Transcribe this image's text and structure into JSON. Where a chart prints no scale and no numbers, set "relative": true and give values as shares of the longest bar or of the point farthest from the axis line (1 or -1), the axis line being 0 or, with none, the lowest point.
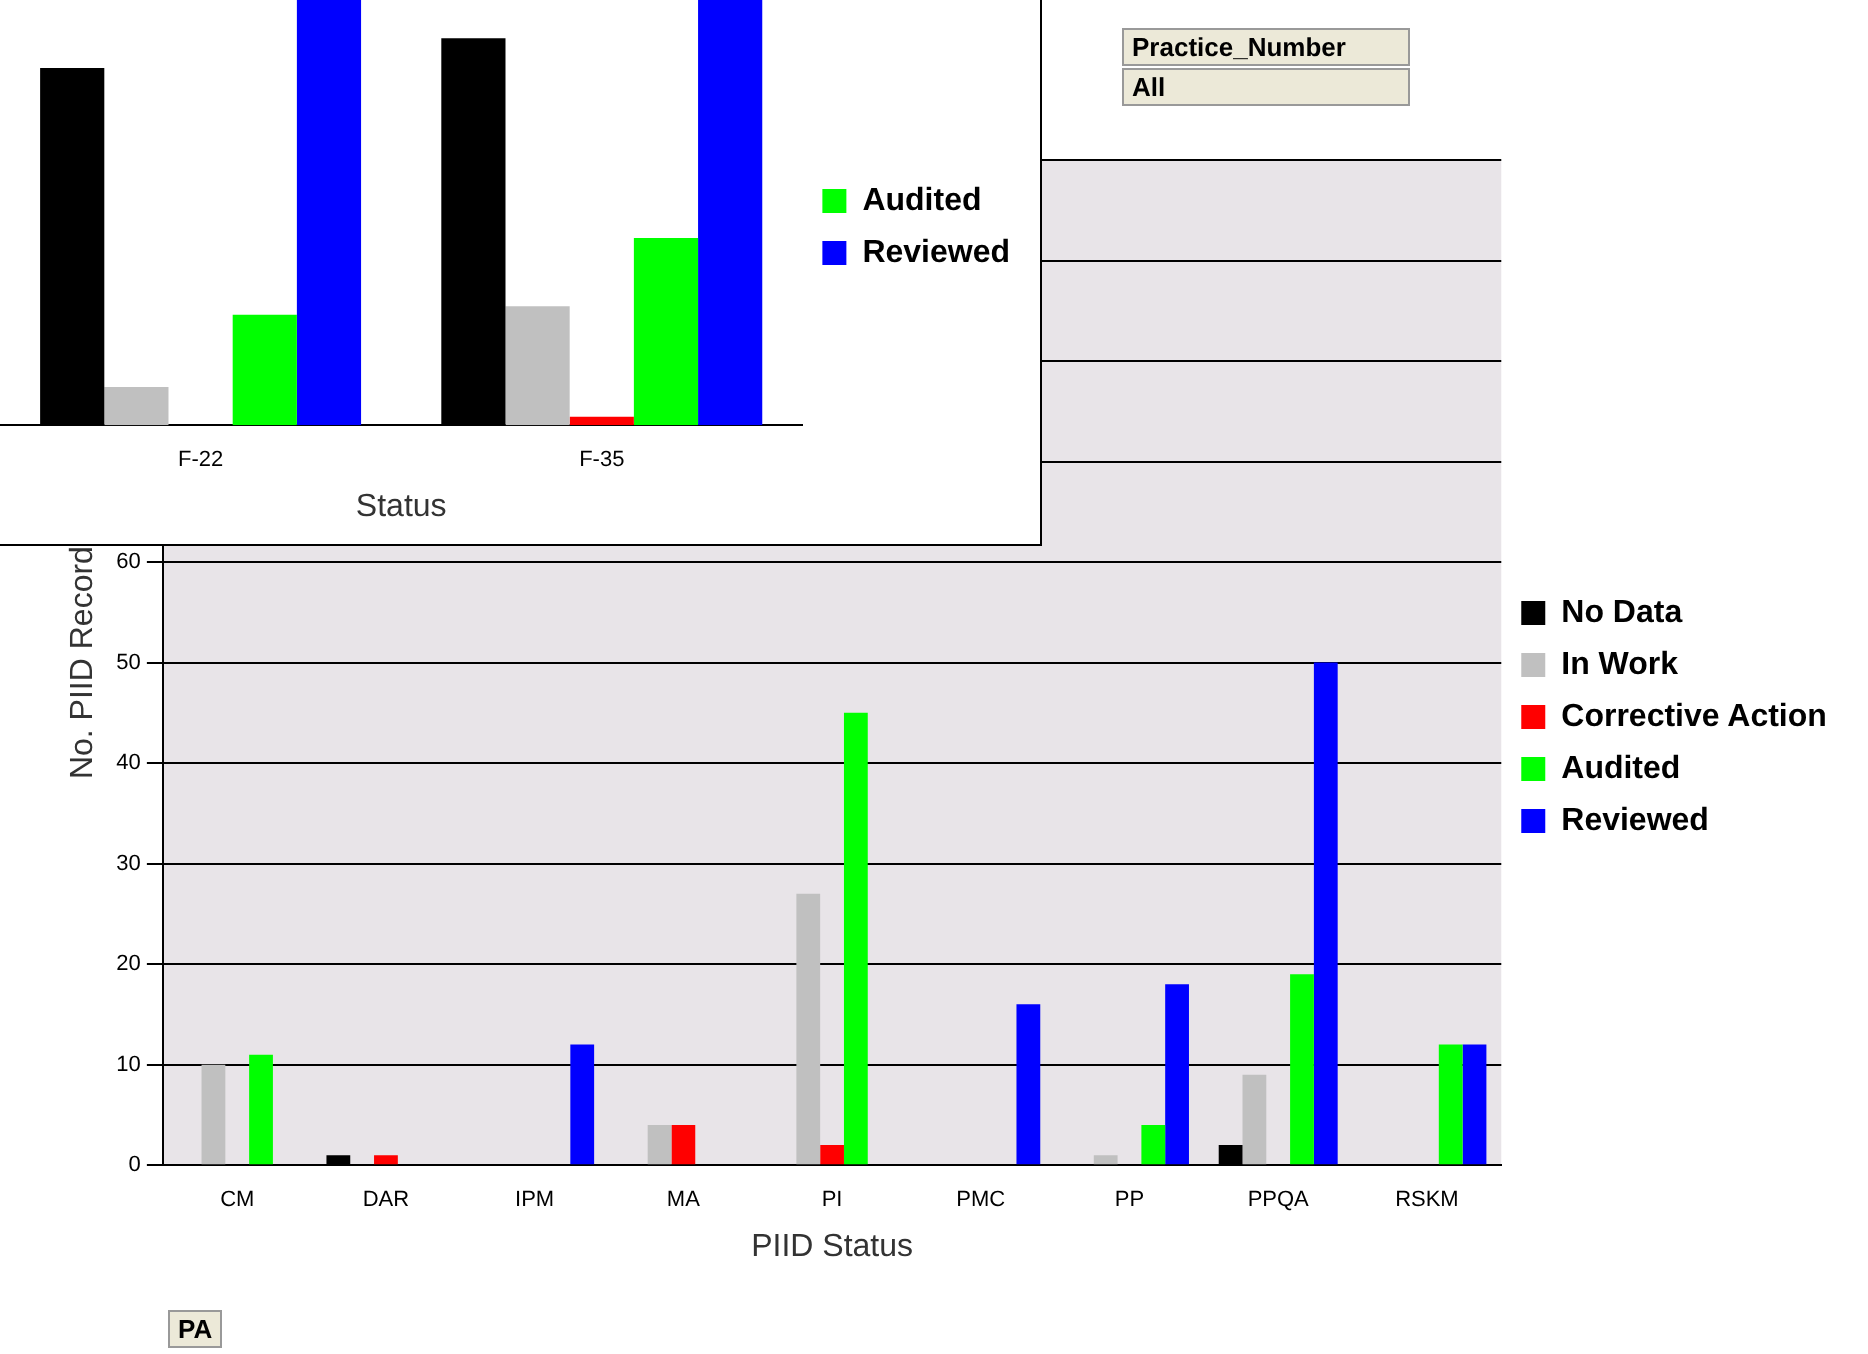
{
  "chart_data": [
    {
      "type": "bar",
      "xlabel": "PIID Status",
      "ylabel": "No. PIID Record",
      "categories": [
        "CM",
        "DAR",
        "IPM",
        "MA",
        "PI",
        "PMC",
        "PP",
        "PPQA",
        "RSKM"
      ],
      "series": [
        {
          "name": "No Data",
          "color": "#000000",
          "values": [
            null,
            1,
            0,
            0,
            null,
            0,
            0,
            2,
            0
          ]
        },
        {
          "name": "In Work",
          "color": "#c0c0c0",
          "values": [
            10,
            0,
            0,
            4,
            27,
            0,
            1,
            9,
            0
          ]
        },
        {
          "name": "Corrective Action",
          "color": "#ff0000",
          "values": [
            0,
            1,
            0,
            4,
            2,
            0,
            0,
            0,
            0
          ]
        },
        {
          "name": "Audited",
          "color": "#00ff00",
          "values": [
            11,
            0,
            0,
            0,
            45,
            0,
            4,
            19,
            12
          ]
        },
        {
          "name": "Reviewed",
          "color": "#0000ff",
          "values": [
            0,
            null,
            12,
            null,
            0,
            16,
            18,
            50,
            12
          ]
        }
      ],
      "ylim": [
        0,
        100
      ],
      "yticks": [
        0,
        10,
        20,
        30,
        40,
        50,
        60,
        {
          "value": 70,
          "label": null
        },
        {
          "value": 80,
          "label": null
        },
        {
          "value": 90,
          "label": null
        },
        {
          "value": 100,
          "label": null
        }
      ],
      "grid": "y",
      "legend": "right",
      "annotations": [
        "Practice_Number",
        "All",
        "PA"
      ]
    },
    {
      "type": "bar",
      "xlabel": "Status",
      "categories": [
        "F-22",
        "F-35"
      ],
      "relative": true,
      "series": [
        {
          "color": "#000000",
          "values": [
            0.84,
            0.91
          ]
        },
        {
          "color": "#c0c0c0",
          "values": [
            0.09,
            0.28
          ]
        },
        {
          "color": "#ff0000",
          "values": [
            0,
            0.02
          ]
        },
        {
          "name": "Audited",
          "color": "#00ff00",
          "values": [
            0.26,
            0.44
          ]
        },
        {
          "name": "Reviewed",
          "color": "#0000ff",
          "values": [
            1,
            1
          ]
        }
      ],
      "legend": "right"
    }
  ]
}
